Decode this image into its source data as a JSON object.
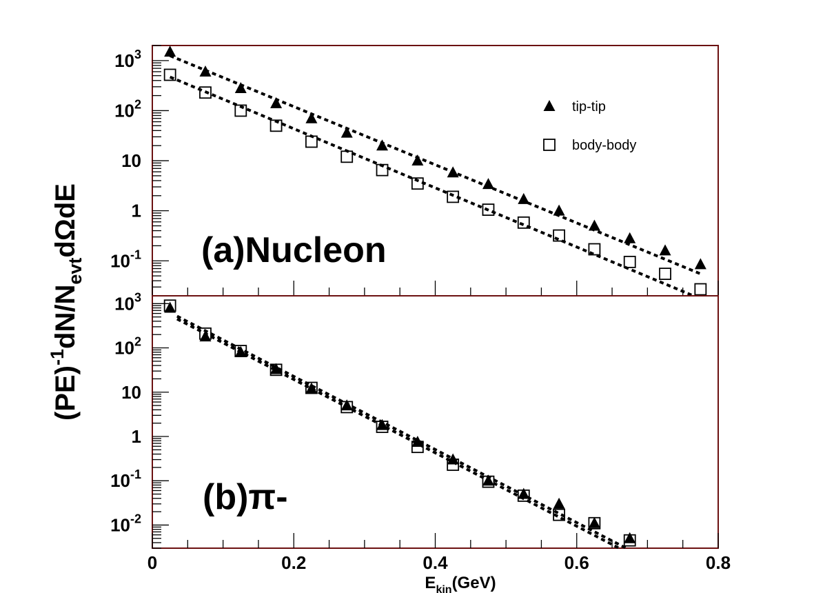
{
  "chart_data": {
    "type": "scatter",
    "x_axis": {
      "range": [
        0,
        0.8
      ],
      "tick_labels": [
        "0",
        "0.2",
        "0.4",
        "0.6",
        "0.8"
      ],
      "label": {
        "main": "E",
        "sub": "kin",
        "unit": "(GeV)"
      }
    },
    "y_axis": {
      "scale": "log",
      "label": {
        "pre": "(PE)",
        "sup": "-1",
        "mid": "dN/N",
        "sub": "evt",
        "post": "dΩdE"
      }
    },
    "legend": {
      "placement": "top-right",
      "entries": [
        {
          "label": "tip-tip",
          "marker": "filled-triangle"
        },
        {
          "label": "body-body",
          "marker": "open-square"
        }
      ]
    },
    "panels": [
      {
        "name": "(a)Nucleon",
        "ylim": [
          0.02,
          2000
        ],
        "tick_labels": [
          {
            "value": 1000,
            "base": "10",
            "exp": "3"
          },
          {
            "value": 100,
            "base": "10",
            "exp": "2"
          },
          {
            "value": 10,
            "base": "10",
            "exp": ""
          },
          {
            "value": 1,
            "base": "1",
            "exp": ""
          },
          {
            "value": 0.1,
            "base": "10",
            "exp": "-1"
          }
        ],
        "series": [
          {
            "name": "tip-tip",
            "x": [
              0.025,
              0.075,
              0.125,
              0.175,
              0.225,
              0.275,
              0.325,
              0.375,
              0.425,
              0.475,
              0.525,
              0.575,
              0.625,
              0.675,
              0.725,
              0.775
            ],
            "y": [
              1500,
              600,
              280,
              140,
              70,
              36,
              20,
              10,
              5.8,
              3.4,
              1.7,
              1.0,
              0.5,
              0.28,
              0.16,
              0.085
            ],
            "fit": {
              "x": [
                0.025,
                0.775
              ],
              "y": [
                1250,
                0.055
              ]
            }
          },
          {
            "name": "body-body",
            "x": [
              0.025,
              0.075,
              0.125,
              0.175,
              0.225,
              0.275,
              0.325,
              0.375,
              0.425,
              0.475,
              0.525,
              0.575,
              0.625,
              0.675,
              0.725,
              0.775
            ],
            "y": [
              520,
              230,
              100,
              50,
              24,
              12,
              6.5,
              3.5,
              1.9,
              1.05,
              0.58,
              0.32,
              0.17,
              0.095,
              0.055,
              0.027
            ],
            "fit": {
              "x": [
                0.025,
                0.765
              ],
              "y": [
                470,
                0.02
              ]
            }
          }
        ]
      },
      {
        "name": "(b)π-",
        "ylim": [
          0.003,
          1500
        ],
        "tick_labels": [
          {
            "value": 1000,
            "base": "10",
            "exp": "3"
          },
          {
            "value": 100,
            "base": "10",
            "exp": "2"
          },
          {
            "value": 10,
            "base": "10",
            "exp": ""
          },
          {
            "value": 1,
            "base": "1",
            "exp": ""
          },
          {
            "value": 0.1,
            "base": "10",
            "exp": "-1"
          },
          {
            "value": 0.01,
            "base": "10",
            "exp": "-2"
          }
        ],
        "series": [
          {
            "name": "tip-tip",
            "x": [
              0.025,
              0.075,
              0.125,
              0.175,
              0.225,
              0.275,
              0.325,
              0.375,
              0.425,
              0.475,
              0.525,
              0.575,
              0.625,
              0.675
            ],
            "y": [
              800,
              180,
              80,
              33,
              12,
              5,
              1.8,
              0.75,
              0.3,
              0.1,
              0.05,
              0.03,
              0.011,
              0.005
            ],
            "fit": {
              "x": [
                0.035,
                0.66
              ],
              "y": [
                450,
                0.003
              ]
            }
          },
          {
            "name": "body-body",
            "x": [
              0.025,
              0.075,
              0.125,
              0.175,
              0.225,
              0.275,
              0.325,
              0.375,
              0.425,
              0.475,
              0.525,
              0.575,
              0.625,
              0.675
            ],
            "y": [
              900,
              210,
              85,
              32,
              12.5,
              4.6,
              1.65,
              0.58,
              0.23,
              0.095,
              0.046,
              0.017,
              0.011,
              0.0045
            ],
            "fit": {
              "x": [
                0.035,
                0.67
              ],
              "y": [
                520,
                0.003
              ]
            }
          }
        ]
      }
    ]
  }
}
